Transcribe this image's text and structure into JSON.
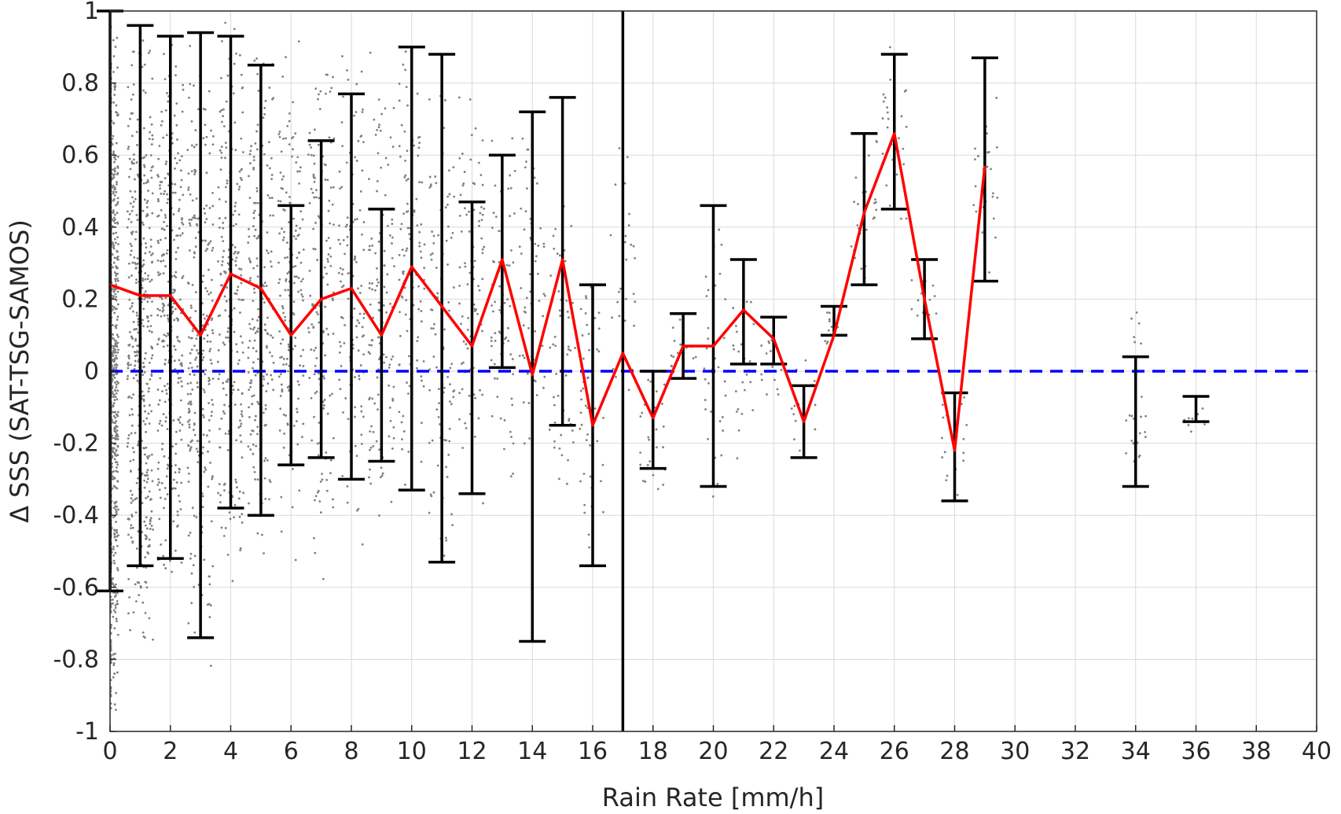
{
  "chart_data": {
    "type": "scatter",
    "title": "",
    "xlabel": "Rain Rate [mm/h]",
    "ylabel": "Δ SSS (SAT-TSG-SAMOS)",
    "xlim": [
      0,
      40
    ],
    "ylim": [
      -1,
      1
    ],
    "xticks": [
      0,
      2,
      4,
      6,
      8,
      10,
      12,
      14,
      16,
      18,
      20,
      22,
      24,
      26,
      28,
      30,
      32,
      34,
      36,
      38,
      40
    ],
    "yticks": [
      1,
      0.8,
      0.6,
      0.4,
      0.2,
      0,
      -0.2,
      -0.4,
      -0.6,
      -0.8,
      -1
    ],
    "ytick_labels": [
      "1",
      "0.8",
      "0.6",
      "0.4",
      "0.2",
      "0",
      "-0.2",
      "-0.4",
      "-0.6",
      "-0.8",
      "-1"
    ],
    "grid": true,
    "vertical_line_x": 17,
    "zero_line_y": 0,
    "colors": {
      "mean_line": "#ff0000",
      "error_bars": "#000000",
      "zero_line": "#0000ff",
      "scatter": "#808080",
      "grid": "#d9d9d9"
    },
    "mean_line": {
      "x": [
        0,
        1,
        2,
        3,
        4,
        5,
        6,
        7,
        8,
        9,
        10,
        11,
        12,
        13,
        14,
        15,
        16,
        17,
        18,
        19,
        20,
        21,
        22,
        23,
        24,
        25,
        26,
        27,
        28,
        29
      ],
      "y": [
        0.24,
        0.21,
        0.21,
        0.1,
        0.27,
        0.23,
        0.1,
        0.2,
        0.23,
        0.1,
        0.29,
        0.18,
        0.07,
        0.31,
        -0.01,
        0.31,
        -0.15,
        0.05,
        -0.13,
        0.07,
        0.07,
        0.17,
        0.09,
        -0.14,
        0.1,
        0.44,
        0.66,
        0.2,
        -0.22,
        0.57
      ]
    },
    "error_bars": [
      {
        "x": 0,
        "low": -0.61,
        "high": 1.0
      },
      {
        "x": 1,
        "low": -0.54,
        "high": 0.96
      },
      {
        "x": 2,
        "low": -0.52,
        "high": 0.93
      },
      {
        "x": 3,
        "low": -0.74,
        "high": 0.94
      },
      {
        "x": 4,
        "low": -0.38,
        "high": 0.93
      },
      {
        "x": 5,
        "low": -0.4,
        "high": 0.85
      },
      {
        "x": 6,
        "low": -0.26,
        "high": 0.46
      },
      {
        "x": 7,
        "low": -0.24,
        "high": 0.64
      },
      {
        "x": 8,
        "low": -0.3,
        "high": 0.77
      },
      {
        "x": 9,
        "low": -0.25,
        "high": 0.45
      },
      {
        "x": 10,
        "low": -0.33,
        "high": 0.9
      },
      {
        "x": 11,
        "low": -0.53,
        "high": 0.88
      },
      {
        "x": 12,
        "low": -0.34,
        "high": 0.47
      },
      {
        "x": 13,
        "low": 0.01,
        "high": 0.6
      },
      {
        "x": 14,
        "low": -0.75,
        "high": 0.72
      },
      {
        "x": 15,
        "low": -0.15,
        "high": 0.76
      },
      {
        "x": 16,
        "low": -0.54,
        "high": 0.24
      },
      {
        "x": 18,
        "low": -0.27,
        "high": 0.0
      },
      {
        "x": 19,
        "low": -0.02,
        "high": 0.16
      },
      {
        "x": 20,
        "low": -0.32,
        "high": 0.46
      },
      {
        "x": 21,
        "low": 0.02,
        "high": 0.31
      },
      {
        "x": 22,
        "low": 0.02,
        "high": 0.15
      },
      {
        "x": 23,
        "low": -0.24,
        "high": -0.04
      },
      {
        "x": 24,
        "low": 0.1,
        "high": 0.18
      },
      {
        "x": 25,
        "low": 0.24,
        "high": 0.66
      },
      {
        "x": 26,
        "low": 0.45,
        "high": 0.88
      },
      {
        "x": 27,
        "low": 0.09,
        "high": 0.31
      },
      {
        "x": 28,
        "low": -0.36,
        "high": -0.06
      },
      {
        "x": 29,
        "low": 0.25,
        "high": 0.87
      },
      {
        "x": 34,
        "low": -0.32,
        "high": 0.04
      },
      {
        "x": 36,
        "low": -0.14,
        "high": -0.07
      }
    ],
    "scatter_columns": [
      {
        "x": 0,
        "low": -1.0,
        "high": 1.0,
        "n": 900
      },
      {
        "x": 1,
        "low": -0.84,
        "high": 1.0,
        "n": 420
      },
      {
        "x": 2,
        "low": -0.7,
        "high": 1.0,
        "n": 300
      },
      {
        "x": 3,
        "low": -0.9,
        "high": 1.0,
        "n": 260
      },
      {
        "x": 4,
        "low": -0.6,
        "high": 1.0,
        "n": 220
      },
      {
        "x": 5,
        "low": -0.58,
        "high": 1.0,
        "n": 200
      },
      {
        "x": 6,
        "low": -0.55,
        "high": 0.95,
        "n": 170
      },
      {
        "x": 7,
        "low": -0.61,
        "high": 0.94,
        "n": 150
      },
      {
        "x": 8,
        "low": -0.52,
        "high": 0.95,
        "n": 130
      },
      {
        "x": 9,
        "low": -0.5,
        "high": 0.9,
        "n": 120
      },
      {
        "x": 10,
        "low": -0.4,
        "high": 0.94,
        "n": 110
      },
      {
        "x": 11,
        "low": -0.6,
        "high": 0.88,
        "n": 100
      },
      {
        "x": 12,
        "low": -0.45,
        "high": 0.9,
        "n": 90
      },
      {
        "x": 13,
        "low": -0.4,
        "high": 0.75,
        "n": 70
      },
      {
        "x": 14,
        "low": -0.3,
        "high": 0.72,
        "n": 60
      },
      {
        "x": 15,
        "low": -0.45,
        "high": 0.7,
        "n": 55
      },
      {
        "x": 16,
        "low": -0.55,
        "high": 0.35,
        "n": 50
      },
      {
        "x": 17,
        "low": -0.2,
        "high": 0.72,
        "n": 30
      },
      {
        "x": 18,
        "low": -0.42,
        "high": 0.0,
        "n": 25
      },
      {
        "x": 19,
        "low": -0.05,
        "high": 0.16,
        "n": 20
      },
      {
        "x": 20,
        "low": -0.6,
        "high": 0.55,
        "n": 35
      },
      {
        "x": 21,
        "low": -0.27,
        "high": 0.3,
        "n": 25
      },
      {
        "x": 22,
        "low": -0.1,
        "high": 0.15,
        "n": 15
      },
      {
        "x": 23,
        "low": -0.28,
        "high": 0.1,
        "n": 15
      },
      {
        "x": 24,
        "low": 0.05,
        "high": 0.18,
        "n": 12
      },
      {
        "x": 25,
        "low": 0.2,
        "high": 0.68,
        "n": 25
      },
      {
        "x": 26,
        "low": 0.35,
        "high": 0.95,
        "n": 30
      },
      {
        "x": 27,
        "low": 0.05,
        "high": 0.32,
        "n": 15
      },
      {
        "x": 28,
        "low": -0.38,
        "high": 0.0,
        "n": 20
      },
      {
        "x": 29,
        "low": 0.2,
        "high": 0.9,
        "n": 25
      },
      {
        "x": 34,
        "low": -0.38,
        "high": 0.23,
        "n": 25
      },
      {
        "x": 36,
        "low": -0.19,
        "high": -0.06,
        "n": 10
      }
    ]
  }
}
